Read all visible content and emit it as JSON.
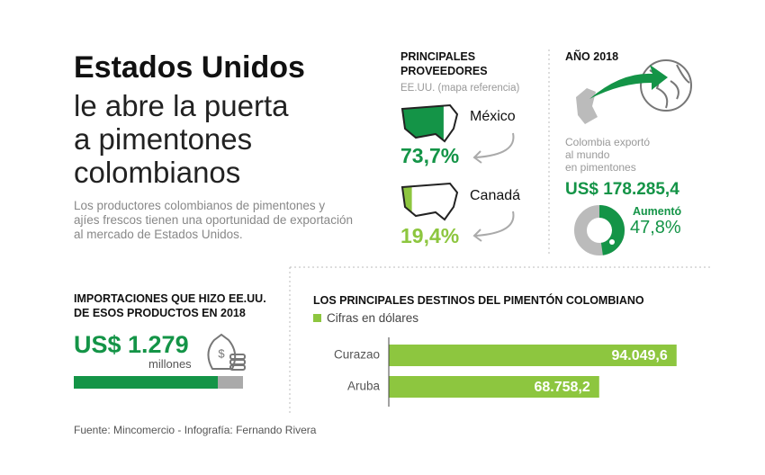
{
  "headline": {
    "title": "Estados Unidos",
    "subtitle_lines": [
      "le abre la puerta",
      "a pimentones",
      "colombianos"
    ],
    "intro": "Los productores colombianos de pimentones y ajíes frescos tienen una oportunidad de exportación al mercado de Estados Unidos."
  },
  "suppliers": {
    "title_lines": [
      "PRINCIPALES",
      "PROVEEDORES"
    ],
    "note": "EE.UU. (mapa referencia)",
    "items": [
      {
        "name": "México",
        "value": 73.7,
        "value_label": "73,7%",
        "color": "#149447"
      },
      {
        "name": "Canadá",
        "value": 19.4,
        "value_label": "19,4%",
        "color": "#8dc63f"
      }
    ]
  },
  "year": {
    "title": "AÑO 2018",
    "caption_lines": [
      "Colombia exportó",
      "al mundo",
      "en pimentones"
    ],
    "amount": "US$ 178.285,4",
    "change_label": "Aumentó",
    "change": 47.8,
    "change_value_label": "47,8%"
  },
  "imports": {
    "title_lines": [
      "IMPORTACIONES QUE HIZO EE.UU.",
      "DE ESOS PRODUCTOS EN 2018"
    ],
    "amount": "US$ 1.279",
    "unit": "millones"
  },
  "chart_data": {
    "type": "bar",
    "orientation": "horizontal",
    "title": "LOS PRINCIPALES DESTINOS DEL PIMENTÓN COLOMBIANO",
    "legend": "Cifras en dólares",
    "categories": [
      "Curazao",
      "Aruba"
    ],
    "values": [
      94049.6,
      68758.2
    ],
    "value_labels": [
      "94.049,6",
      "68.758,2"
    ],
    "color": "#8dc63f",
    "xlim": [
      0,
      100000
    ]
  },
  "footer": "Fuente: Mincomercio  -  Infografía: Fernando Rivera"
}
